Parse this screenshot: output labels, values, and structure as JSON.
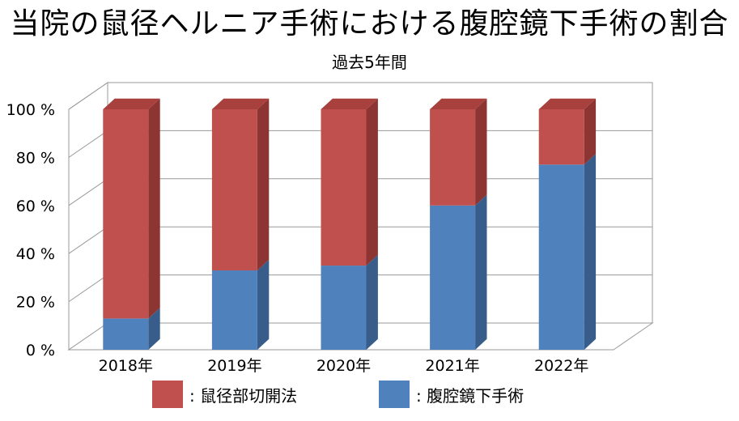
{
  "chart_data": {
    "type": "bar",
    "stacked": true,
    "three_d": true,
    "title": "当院の鼠径ヘルニア手術における腹腔鏡下手術の割合",
    "subtitle": "過去5年間",
    "categories": [
      "2018年",
      "2019年",
      "2020年",
      "2021年",
      "2022年"
    ],
    "series": [
      {
        "name": "腹腔鏡下手術",
        "values": [
          13,
          33,
          35,
          60,
          77
        ],
        "color": "#4F81BD",
        "side": "#385D8A",
        "top": "#6E98CC"
      },
      {
        "name": "鼠径部切開法",
        "values": [
          87,
          67,
          65,
          40,
          23
        ],
        "color": "#C0504D",
        "side": "#8C3533",
        "top": "#A8403D"
      }
    ],
    "ylim": [
      0,
      100
    ],
    "yticks": [
      "0 %",
      "20 %",
      "40 %",
      "60 %",
      "80 %",
      "100 %"
    ],
    "grid": true,
    "legend": [
      {
        "label": ": 鼠径部切開法",
        "color": "#C0504D"
      },
      {
        "label": ": 腹腔鏡下手術",
        "color": "#4F81BD"
      }
    ],
    "legend_position": "bottom"
  }
}
